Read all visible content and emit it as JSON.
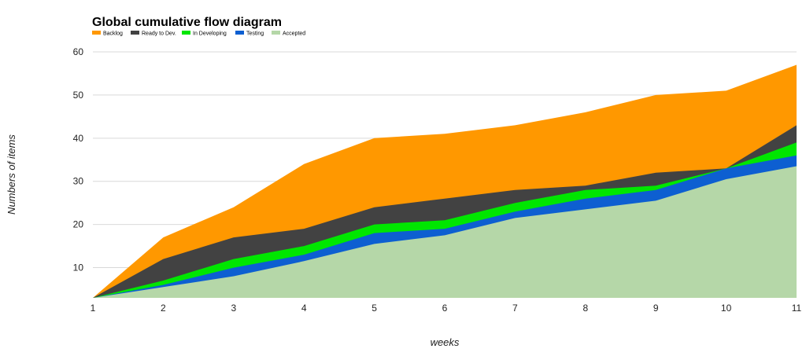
{
  "chart_data": {
    "type": "area",
    "title": "Global cumulative flow diagram",
    "xlabel": "weeks",
    "ylabel": "Numbers of items",
    "x": [
      1,
      2,
      3,
      4,
      5,
      6,
      7,
      8,
      9,
      10,
      11
    ],
    "ylim": [
      3,
      60
    ],
    "yticks": [
      10,
      20,
      30,
      40,
      50,
      60
    ],
    "grid": true,
    "legend": "top-left",
    "series": [
      {
        "name": "Backlog",
        "color": "#ff9800",
        "values": [
          3,
          17,
          24,
          34,
          40,
          41,
          43,
          46,
          50,
          51,
          57
        ]
      },
      {
        "name": "Ready to Dev.",
        "color": "#424242",
        "values": [
          3,
          12,
          17,
          19,
          24,
          26,
          28,
          29,
          32,
          33,
          43
        ]
      },
      {
        "name": "In Developing",
        "color": "#00e600",
        "values": [
          3,
          7,
          12,
          15,
          20,
          21,
          25,
          28,
          29,
          33,
          39
        ]
      },
      {
        "name": "Testing",
        "color": "#0d5fd1",
        "values": [
          3,
          6,
          10,
          13,
          18,
          19,
          23,
          26,
          28,
          33,
          36
        ]
      },
      {
        "name": "Accepted",
        "color": "#b5d7a8",
        "values": [
          3,
          5.5,
          8,
          11.5,
          15.5,
          17.5,
          21.5,
          23.5,
          25.5,
          30.5,
          33.5
        ]
      }
    ]
  }
}
